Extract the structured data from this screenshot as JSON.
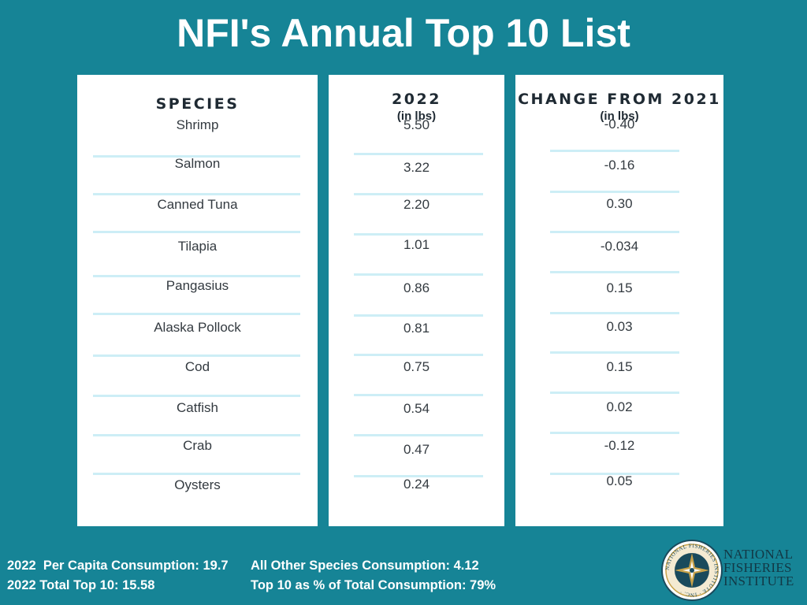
{
  "title": "NFI's Annual Top 10 List",
  "headers": {
    "species": "SPECIES",
    "year": "2022",
    "year_unit": "(in lbs)",
    "change": "CHANGE FROM 2021",
    "change_unit": "(in lbs)"
  },
  "chart_data": {
    "type": "table",
    "title": "NFI's Annual Top 10 List",
    "columns": [
      "SPECIES",
      "2022 (in lbs)",
      "CHANGE FROM 2021 (in lbs)"
    ],
    "rows": [
      {
        "species": "Shrimp",
        "value": "5.50",
        "change": "-0.40"
      },
      {
        "species": "Salmon",
        "value": "3.22",
        "change": "-0.16"
      },
      {
        "species": "Canned Tuna",
        "value": "2.20",
        "change": "0.30"
      },
      {
        "species": "Tilapia",
        "value": "1.01",
        "change": "-0.034"
      },
      {
        "species": "Pangasius",
        "value": "0.86",
        "change": "0.15"
      },
      {
        "species": "Alaska Pollock",
        "value": "0.81",
        "change": "0.03"
      },
      {
        "species": "Cod",
        "value": "0.75",
        "change": "0.15"
      },
      {
        "species": "Catfish",
        "value": "0.54",
        "change": "0.02"
      },
      {
        "species": "Crab",
        "value": "0.47",
        "change": "-0.12"
      },
      {
        "species": "Oysters",
        "value": "0.24",
        "change": "0.05"
      }
    ]
  },
  "footer": {
    "per_capita": "2022  Per Capita Consumption: 19.7",
    "total_top10": "2022 Total Top 10: 15.58",
    "other_species": "All Other Species Consumption: 4.12",
    "top10_pct": "Top 10 as % of Total Consumption: 79%"
  },
  "logo": {
    "name": "National Fisheries Institute logo",
    "ring_text": "NATIONAL FISHERIES INSTITUTE INC.",
    "line1": "NATIONAL",
    "line2": "FISHERIES",
    "line3": "INSTITUTE",
    "colors": {
      "ring": "#1a4a5c",
      "gold": "#c8a24a"
    }
  },
  "colors": {
    "background": "#168496",
    "panel": "#ffffff",
    "rule": "#cdeef6"
  }
}
